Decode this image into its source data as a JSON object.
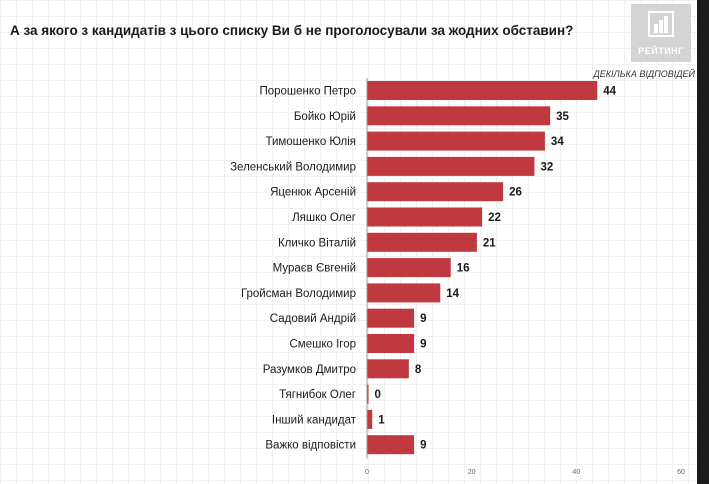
{
  "title": "А за якого з кандидатів з цього списку Ви б не проголосували за жодних обставин?",
  "note": "ДЕКІЛЬКА ВІДПОВІДЕЙ",
  "logo": {
    "text": "РЕЙТИНГ"
  },
  "colors": {
    "bar": "#c0393f",
    "label": "#1a1a1a",
    "axis": "#666666"
  },
  "chart_data": {
    "type": "bar",
    "orientation": "horizontal",
    "categories": [
      "Порошенко Петро",
      "Бойко Юрій",
      "Тимошенко Юлія",
      "Зеленський Володимир",
      "Яценюк Арсеній",
      "Ляшко Олег",
      "Кличко Віталій",
      "Мураєв Євгеній",
      "Гройсман Володимир",
      "Садовий Андрій",
      "Смешко Ігор",
      "Разумков Дмитро",
      "Тягнибок Олег",
      "Інший кандидат",
      "Важко відповісти"
    ],
    "values": [
      44,
      35,
      34,
      32,
      26,
      22,
      21,
      16,
      14,
      9,
      9,
      8,
      0,
      1,
      9
    ],
    "xlim": [
      0,
      60
    ],
    "xticks": [
      0,
      20,
      40,
      60
    ],
    "grid": true
  }
}
